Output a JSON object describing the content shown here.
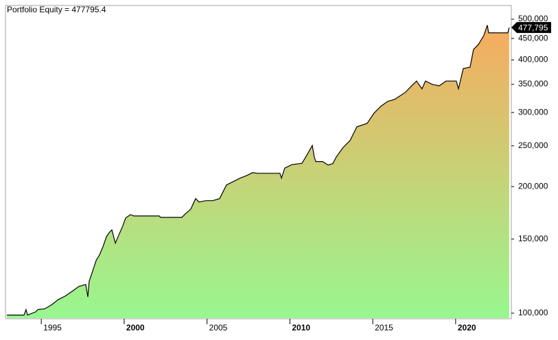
{
  "chart_data": {
    "type": "area",
    "title": "Portfolio Equity = 477795.4",
    "x": [
      1992.92,
      1993.96,
      1994.08,
      1994.17,
      1994.66,
      1994.79,
      1995.2,
      1995.61,
      1996.03,
      1996.44,
      1996.86,
      1997.27,
      1997.68,
      1997.81,
      1997.89,
      1998.1,
      1998.31,
      1998.51,
      1998.72,
      1998.93,
      1999.13,
      1999.26,
      1999.47,
      1999.63,
      1999.88,
      2000.09,
      2000.38,
      2000.58,
      2002.11,
      2002.2,
      2003.48,
      2003.69,
      2004.02,
      2004.31,
      2004.52,
      2004.93,
      2005.35,
      2005.76,
      2006.17,
      2006.59,
      2007.0,
      2007.42,
      2007.75,
      2008.04,
      2009.4,
      2009.49,
      2009.69,
      2010.11,
      2010.73,
      2011.06,
      2011.35,
      2011.47,
      2011.56,
      2011.97,
      2012.3,
      2012.59,
      2012.8,
      2013.21,
      2013.63,
      2014.04,
      2014.66,
      2015.08,
      2015.49,
      2015.9,
      2016.32,
      2016.94,
      2017.35,
      2017.64,
      2017.97,
      2018.18,
      2018.59,
      2019.01,
      2019.42,
      2020.04,
      2020.17,
      2020.46,
      2020.87,
      2021.08,
      2021.37,
      2021.7,
      2021.91,
      2021.99,
      2023.15,
      2023.23
    ],
    "series": [
      {
        "name": "Portfolio Equity",
        "values": [
          99000,
          99000,
          102000,
          99000,
          100700,
          102000,
          102400,
          104600,
          107800,
          109800,
          112700,
          115800,
          117000,
          109300,
          119000,
          126000,
          133500,
          137500,
          143900,
          152000,
          156000,
          157800,
          146600,
          152000,
          159900,
          168400,
          171600,
          170300,
          170300,
          169000,
          169000,
          172200,
          176900,
          187300,
          183800,
          185200,
          185200,
          187300,
          201800,
          205600,
          209500,
          212700,
          215900,
          215100,
          215100,
          209500,
          221300,
          225500,
          227200,
          239000,
          250500,
          235300,
          229400,
          229400,
          225100,
          226800,
          235300,
          247800,
          257300,
          277400,
          282700,
          299100,
          310500,
          318900,
          322400,
          334400,
          347300,
          356500,
          341600,
          356500,
          349900,
          347300,
          356500,
          356500,
          341600,
          381600,
          384500,
          423800,
          435000,
          457200,
          483900,
          464100,
          464100,
          477795.4
        ]
      }
    ],
    "last_value_label": {
      "value": 477795.4,
      "label": "477,795"
    },
    "line_color": "#000000",
    "gradient": [
      "#f7ab5e",
      "#98f78f"
    ],
    "xlim": [
      1992.84,
      2023.36
    ],
    "xticks": [
      1995,
      2000,
      2005,
      2010,
      2015,
      2020
    ],
    "ylim": [
      97000,
      539000
    ],
    "log_y": true,
    "yticks": [
      {
        "value": 100000,
        "label": "100,000"
      },
      {
        "value": 150000,
        "label": "150,000"
      },
      {
        "value": 200000,
        "label": "200,000"
      },
      {
        "value": 250000,
        "label": "250,000"
      },
      {
        "value": 300000,
        "label": "300,000"
      },
      {
        "value": 350000,
        "label": "350,000"
      },
      {
        "value": 400000,
        "label": "400,000"
      },
      {
        "value": 450000,
        "label": "450,000"
      },
      {
        "value": 500000,
        "label": "500,000"
      }
    ]
  }
}
